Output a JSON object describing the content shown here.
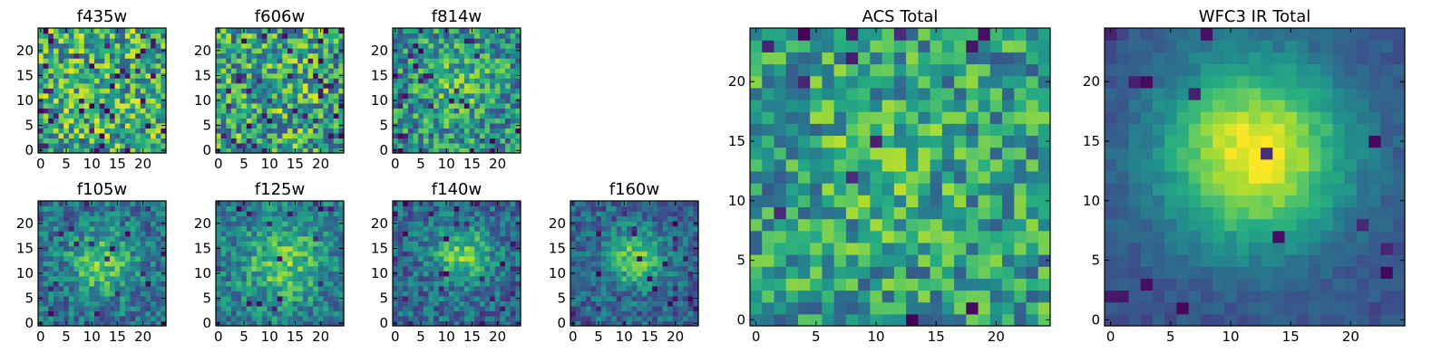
{
  "chart_data": {
    "type": "heatmap",
    "colormap": "viridis",
    "grid": false,
    "panels": [
      {
        "id": "f435w",
        "title": "f435w",
        "size": 25,
        "xticks": [
          0,
          5,
          10,
          15,
          20
        ],
        "yticks": [
          0,
          5,
          10,
          15,
          20
        ],
        "xlim": [
          0,
          25
        ],
        "ylim": [
          0,
          25
        ],
        "description_key": "noise",
        "seed": 11,
        "blob": 0.0,
        "blob_center": [
          12,
          13
        ],
        "blob_sigma": 6,
        "noise": 1.0,
        "dark_fraction": 0.06,
        "mean_level": 0.62
      },
      {
        "id": "f606w",
        "title": "f606w",
        "size": 25,
        "xticks": [
          0,
          5,
          10,
          15,
          20
        ],
        "yticks": [
          0,
          5,
          10,
          15,
          20
        ],
        "xlim": [
          0,
          25
        ],
        "ylim": [
          0,
          25
        ],
        "seed": 23,
        "blob": 0.05,
        "blob_center": [
          12,
          13
        ],
        "blob_sigma": 6,
        "noise": 1.0,
        "dark_fraction": 0.06,
        "mean_level": 0.6
      },
      {
        "id": "f814w",
        "title": "f814w",
        "size": 25,
        "xticks": [
          0,
          5,
          10,
          15,
          20
        ],
        "yticks": [
          0,
          5,
          10,
          15,
          20
        ],
        "xlim": [
          0,
          25
        ],
        "ylim": [
          0,
          25
        ],
        "seed": 37,
        "blob": 0.25,
        "blob_center": [
          12,
          14
        ],
        "blob_sigma": 5,
        "noise": 0.85,
        "dark_fraction": 0.05,
        "mean_level": 0.58
      },
      {
        "id": "f105w",
        "title": "f105w",
        "size": 25,
        "xticks": [
          0,
          5,
          10,
          15,
          20
        ],
        "yticks": [
          0,
          5,
          10,
          15,
          20
        ],
        "xlim": [
          0,
          25
        ],
        "ylim": [
          0,
          25
        ],
        "seed": 41,
        "blob": 0.5,
        "blob_center": [
          12,
          12
        ],
        "blob_sigma": 4.5,
        "noise": 0.6,
        "dark_fraction": 0.04,
        "mean_level": 0.5
      },
      {
        "id": "f125w",
        "title": "f125w",
        "size": 25,
        "xticks": [
          0,
          5,
          10,
          15,
          20
        ],
        "yticks": [
          0,
          5,
          10,
          15,
          20
        ],
        "xlim": [
          0,
          25
        ],
        "ylim": [
          0,
          25
        ],
        "seed": 53,
        "blob": 0.45,
        "blob_center": [
          13,
          12
        ],
        "blob_sigma": 5.5,
        "noise": 0.6,
        "dark_fraction": 0.03,
        "mean_level": 0.55
      },
      {
        "id": "f140w",
        "title": "f140w",
        "size": 25,
        "xticks": [
          0,
          5,
          10,
          15,
          20
        ],
        "yticks": [
          0,
          5,
          10,
          15,
          20
        ],
        "xlim": [
          0,
          25
        ],
        "ylim": [
          0,
          25
        ],
        "seed": 67,
        "blob": 0.55,
        "blob_center": [
          13,
          14
        ],
        "blob_sigma": 4,
        "noise": 0.55,
        "dark_fraction": 0.04,
        "mean_level": 0.48
      },
      {
        "id": "f160w",
        "title": "f160w",
        "size": 25,
        "xticks": [
          0,
          5,
          10,
          15,
          20
        ],
        "yticks": [
          0,
          5,
          10,
          15,
          20
        ],
        "xlim": [
          0,
          25
        ],
        "ylim": [
          0,
          25
        ],
        "seed": 79,
        "blob": 0.6,
        "blob_center": [
          12,
          13
        ],
        "blob_sigma": 3.8,
        "noise": 0.5,
        "dark_fraction": 0.04,
        "mean_level": 0.45
      },
      {
        "id": "acs-total",
        "title": "ACS Total",
        "size": 25,
        "xticks": [
          0,
          5,
          10,
          15,
          20
        ],
        "yticks": [
          0,
          5,
          10,
          15,
          20
        ],
        "xlim": [
          0,
          25
        ],
        "ylim": [
          0,
          25
        ],
        "seed": 97,
        "blob": 0.15,
        "blob_center": [
          11,
          13
        ],
        "blob_sigma": 5,
        "noise": 0.8,
        "dark_fraction": 0.03,
        "mean_level": 0.6
      },
      {
        "id": "wfc3-ir-total",
        "title": "WFC3 IR Total",
        "size": 25,
        "xticks": [
          0,
          5,
          10,
          15,
          20
        ],
        "yticks": [
          0,
          5,
          10,
          15,
          20
        ],
        "xlim": [
          0,
          25
        ],
        "ylim": [
          0,
          25
        ],
        "seed": 113,
        "blob": 1.0,
        "blob_center": [
          12,
          14
        ],
        "blob_sigma": 5.5,
        "noise": 0.18,
        "dark_fraction": 0.02,
        "mean_level": 0.3
      }
    ]
  }
}
